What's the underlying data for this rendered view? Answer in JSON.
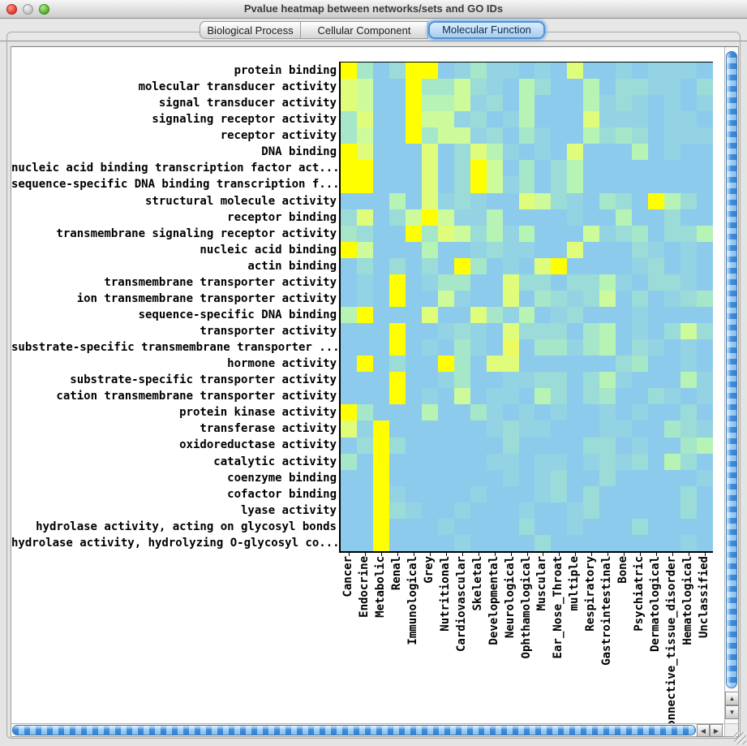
{
  "window": {
    "title": "Pvalue heatmap between networks/sets and GO IDs"
  },
  "tabs": [
    {
      "label": "Biological Process",
      "selected": false
    },
    {
      "label": "Cellular Component",
      "selected": false
    },
    {
      "label": "Molecular Function",
      "selected": true
    }
  ],
  "scrollbar_icons": {
    "up": "▲",
    "down": "▼",
    "left": "◀",
    "right": "▶"
  },
  "chart_data": {
    "type": "heatmap",
    "title": "Pvalue heatmap between networks/sets and GO IDs",
    "rows": [
      "protein binding",
      "molecular transducer activity",
      "signal transducer activity",
      "signaling receptor activity",
      "receptor activity",
      "DNA binding",
      "nucleic acid binding transcription factor act...",
      "sequence-specific DNA binding transcription f...",
      "structural molecule activity",
      "receptor binding",
      "transmembrane signaling receptor activity",
      "nucleic acid binding",
      "actin binding",
      "transmembrane transporter activity",
      "ion transmembrane transporter activity",
      "sequence-specific DNA binding",
      "transporter activity",
      "substrate-specific transmembrane transporter ...",
      "hormone activity",
      "substrate-specific transporter activity",
      "cation transmembrane transporter activity",
      "protein kinase activity",
      "transferase activity",
      "oxidoreductase activity",
      "catalytic activity",
      "coenzyme binding",
      "cofactor binding",
      "lyase activity",
      "hydrolase activity, acting on glycosyl bonds",
      "hydrolase activity, hydrolyzing O-glycosyl co..."
    ],
    "columns": [
      "Cancer",
      "Endocrine",
      "Metabolic",
      "Renal",
      "Immunological",
      "Grey",
      "Nutritional",
      "Cardiovascular",
      "Skeletal",
      "Developmental",
      "Neurological",
      "Ophthamological",
      "Muscular",
      "Ear_Nose_Throat",
      "multiple",
      "Respiratory",
      "Gastrointestinal",
      "Bone",
      "Psychiatric",
      "Dermatological",
      "Connective_tissue_disorder",
      "Hematological",
      "Unclassified"
    ],
    "palette": [
      "#8CCBEB",
      "#93D3E3",
      "#9BDBD8",
      "#A6E6C9",
      "#B7F3B4",
      "#CDFA9B",
      "#E0FC7B",
      "#ECFB5F",
      "#FFFF00"
    ],
    "palette_note": "color level 0 = high p-value (light blue) ... 8 = most significant (bright yellow)",
    "values": [
      [
        8,
        3,
        0,
        2,
        8,
        8,
        0,
        1,
        3,
        1,
        1,
        0,
        1,
        0,
        6,
        0,
        0,
        1,
        0,
        1,
        1,
        1,
        0
      ],
      [
        6,
        5,
        0,
        0,
        8,
        3,
        3,
        5,
        2,
        1,
        0,
        4,
        2,
        0,
        0,
        4,
        0,
        2,
        2,
        1,
        1,
        0,
        2
      ],
      [
        6,
        5,
        0,
        0,
        8,
        4,
        4,
        5,
        1,
        2,
        0,
        4,
        0,
        0,
        0,
        4,
        1,
        2,
        1,
        0,
        1,
        0,
        1
      ],
      [
        3,
        6,
        0,
        0,
        8,
        5,
        5,
        1,
        2,
        0,
        1,
        4,
        0,
        0,
        0,
        6,
        1,
        1,
        1,
        0,
        1,
        1,
        0
      ],
      [
        3,
        5,
        0,
        0,
        8,
        3,
        5,
        5,
        1,
        2,
        0,
        3,
        1,
        0,
        0,
        4,
        2,
        3,
        2,
        0,
        1,
        1,
        1
      ],
      [
        8,
        6,
        0,
        0,
        0,
        6,
        0,
        2,
        6,
        4,
        1,
        0,
        1,
        0,
        6,
        0,
        0,
        0,
        4,
        0,
        1,
        0,
        0
      ],
      [
        8,
        8,
        0,
        0,
        0,
        6,
        0,
        2,
        8,
        5,
        0,
        3,
        0,
        2,
        4,
        0,
        0,
        0,
        0,
        0,
        0,
        0,
        0
      ],
      [
        8,
        8,
        0,
        0,
        0,
        6,
        0,
        2,
        8,
        5,
        1,
        3,
        0,
        2,
        4,
        0,
        0,
        0,
        0,
        0,
        0,
        0,
        0
      ],
      [
        0,
        0,
        0,
        4,
        0,
        6,
        1,
        2,
        1,
        0,
        0,
        6,
        5,
        2,
        1,
        0,
        3,
        2,
        0,
        8,
        4,
        2,
        0
      ],
      [
        2,
        6,
        0,
        2,
        5,
        8,
        5,
        1,
        1,
        4,
        0,
        0,
        0,
        0,
        1,
        0,
        0,
        4,
        0,
        0,
        2,
        0,
        0
      ],
      [
        3,
        2,
        0,
        0,
        8,
        3,
        6,
        5,
        2,
        4,
        1,
        4,
        0,
        0,
        0,
        5,
        1,
        2,
        3,
        0,
        2,
        2,
        4
      ],
      [
        8,
        5,
        0,
        0,
        0,
        4,
        0,
        0,
        1,
        2,
        1,
        1,
        0,
        0,
        6,
        0,
        0,
        0,
        2,
        1,
        0,
        1,
        0
      ],
      [
        0,
        2,
        0,
        2,
        0,
        2,
        0,
        8,
        3,
        0,
        1,
        0,
        6,
        8,
        0,
        0,
        0,
        0,
        1,
        2,
        0,
        1,
        0
      ],
      [
        0,
        1,
        0,
        8,
        0,
        1,
        3,
        3,
        0,
        0,
        6,
        2,
        2,
        0,
        2,
        2,
        4,
        1,
        0,
        2,
        2,
        1,
        0
      ],
      [
        0,
        1,
        0,
        8,
        0,
        0,
        5,
        1,
        0,
        0,
        6,
        0,
        3,
        2,
        1,
        2,
        5,
        0,
        2,
        0,
        1,
        2,
        3
      ],
      [
        4,
        8,
        0,
        0,
        0,
        6,
        0,
        0,
        6,
        3,
        1,
        4,
        0,
        1,
        2,
        0,
        0,
        0,
        1,
        0,
        0,
        0,
        0
      ],
      [
        0,
        0,
        0,
        8,
        0,
        0,
        1,
        2,
        1,
        0,
        6,
        2,
        2,
        2,
        0,
        3,
        4,
        0,
        1,
        0,
        2,
        5,
        2
      ],
      [
        0,
        0,
        0,
        8,
        0,
        1,
        0,
        3,
        1,
        0,
        7,
        0,
        3,
        3,
        1,
        3,
        4,
        0,
        2,
        1,
        0,
        1,
        0
      ],
      [
        0,
        8,
        0,
        2,
        0,
        0,
        8,
        3,
        0,
        6,
        6,
        0,
        0,
        0,
        0,
        0,
        0,
        2,
        3,
        0,
        0,
        1,
        0
      ],
      [
        0,
        0,
        0,
        8,
        0,
        0,
        1,
        3,
        0,
        0,
        1,
        1,
        2,
        2,
        0,
        2,
        4,
        1,
        0,
        0,
        0,
        4,
        1
      ],
      [
        0,
        0,
        0,
        8,
        0,
        1,
        0,
        5,
        0,
        1,
        1,
        0,
        4,
        2,
        0,
        2,
        3,
        0,
        0,
        2,
        1,
        0,
        1
      ],
      [
        8,
        3,
        0,
        0,
        0,
        4,
        0,
        0,
        3,
        1,
        0,
        1,
        0,
        1,
        0,
        0,
        1,
        0,
        1,
        0,
        0,
        2,
        0
      ],
      [
        6,
        1,
        8,
        0,
        0,
        0,
        0,
        0,
        0,
        1,
        2,
        1,
        1,
        0,
        0,
        0,
        1,
        1,
        0,
        0,
        3,
        2,
        1
      ],
      [
        0,
        2,
        8,
        2,
        0,
        0,
        0,
        0,
        0,
        0,
        2,
        0,
        0,
        0,
        0,
        2,
        2,
        0,
        1,
        0,
        0,
        3,
        4
      ],
      [
        3,
        0,
        8,
        0,
        0,
        0,
        0,
        0,
        0,
        1,
        1,
        0,
        1,
        1,
        0,
        1,
        2,
        1,
        2,
        0,
        4,
        2,
        0
      ],
      [
        0,
        0,
        8,
        0,
        0,
        0,
        0,
        0,
        0,
        0,
        1,
        0,
        1,
        2,
        0,
        0,
        2,
        0,
        0,
        0,
        0,
        0,
        1
      ],
      [
        0,
        0,
        8,
        1,
        0,
        0,
        0,
        0,
        1,
        0,
        0,
        0,
        1,
        2,
        0,
        2,
        0,
        0,
        0,
        0,
        0,
        2,
        0
      ],
      [
        0,
        0,
        8,
        2,
        1,
        0,
        0,
        1,
        0,
        0,
        0,
        1,
        0,
        0,
        1,
        2,
        0,
        0,
        0,
        0,
        0,
        2,
        0
      ],
      [
        0,
        0,
        8,
        0,
        0,
        0,
        1,
        0,
        0,
        0,
        0,
        2,
        0,
        0,
        1,
        0,
        0,
        0,
        2,
        0,
        0,
        0,
        0
      ],
      [
        0,
        0,
        8,
        0,
        0,
        0,
        0,
        1,
        0,
        0,
        0,
        0,
        2,
        0,
        0,
        0,
        0,
        0,
        0,
        0,
        0,
        1,
        0
      ]
    ]
  }
}
